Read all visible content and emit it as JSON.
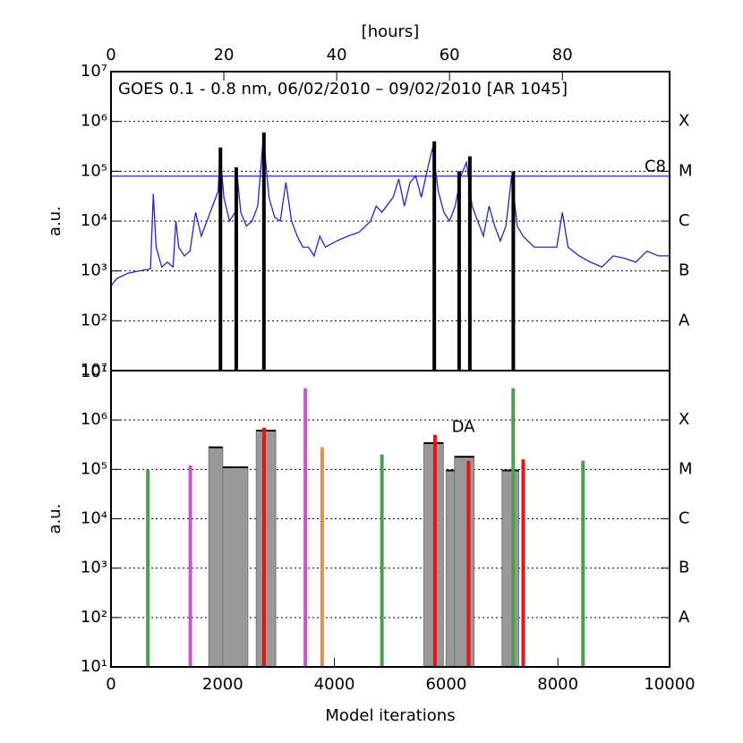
{
  "chart_data": [
    {
      "type": "line",
      "xlabel": "[hours]",
      "ylabel": "a.u.",
      "xlim": [
        0,
        99
      ],
      "xticks": [
        0,
        20,
        40,
        60,
        80
      ],
      "yscale": "log",
      "ylim": [
        10,
        10000000
      ],
      "yticks": [
        {
          "value": 10,
          "label": "10¹"
        },
        {
          "value": 100,
          "label": "10²"
        },
        {
          "value": 1000,
          "label": "10³"
        },
        {
          "value": 10000,
          "label": "10⁴"
        },
        {
          "value": 100000,
          "label": "10⁵"
        },
        {
          "value": 1000000,
          "label": "10⁶"
        },
        {
          "value": 10000000,
          "label": "10⁷"
        }
      ],
      "grid": true,
      "class_labels": [
        {
          "value": 100,
          "label": "A"
        },
        {
          "value": 1000,
          "label": "B"
        },
        {
          "value": 10000,
          "label": "C"
        },
        {
          "value": 100000,
          "label": "M"
        },
        {
          "value": 1000000,
          "label": "X"
        }
      ],
      "threshold": {
        "value": 80000,
        "label": "C8",
        "color": "#2222dd"
      },
      "series": [
        {
          "name": "GOES 0.1 - 0.8 nm, 06/02/2010 – 09/02/2010 [AR 1045]",
          "color": "#2222dd",
          "x": [
            0,
            1,
            3,
            5,
            7,
            7.5,
            8,
            9,
            10,
            11,
            11.5,
            12,
            13,
            14,
            15,
            16,
            17,
            18,
            19,
            19.3,
            20,
            21,
            22,
            22.3,
            23,
            24,
            25,
            26,
            27,
            28,
            29,
            30,
            31,
            32,
            33,
            34,
            35,
            36,
            37,
            38,
            40,
            42,
            44,
            46,
            47,
            48,
            50,
            51,
            52,
            53,
            54,
            55,
            56,
            57,
            58,
            59,
            60,
            61,
            62,
            63,
            64,
            65,
            66,
            67,
            68,
            69,
            70,
            71,
            72,
            73,
            75,
            77,
            79,
            80,
            81,
            83,
            85,
            87,
            89,
            91,
            93,
            95,
            97,
            99
          ],
          "values": [
            500,
            700,
            900,
            1000,
            1100,
            35000,
            3000,
            1200,
            1500,
            1200,
            10000,
            3000,
            2000,
            2500,
            15000,
            5000,
            10000,
            20000,
            40000,
            250000,
            30000,
            10000,
            15000,
            100000,
            15000,
            8000,
            10000,
            20000,
            500000,
            30000,
            12000,
            10000,
            60000,
            10000,
            5000,
            3000,
            3000,
            2000,
            5000,
            3000,
            4000,
            5000,
            6000,
            10000,
            20000,
            15000,
            30000,
            70000,
            20000,
            60000,
            80000,
            30000,
            100000,
            300000,
            40000,
            15000,
            10000,
            20000,
            80000,
            150000,
            20000,
            10000,
            5000,
            20000,
            8000,
            4000,
            8000,
            80000,
            8000,
            5000,
            3000,
            3000,
            3000,
            15000,
            3000,
            2000,
            1500,
            1200,
            2000,
            1800,
            1500,
            2500,
            2000,
            2000
          ]
        }
      ],
      "stems": {
        "color": "#000000",
        "x": [
          19.4,
          22.2,
          27.1,
          57.3,
          61.7,
          63.6,
          71.3
        ],
        "values": [
          300000,
          120000,
          600000,
          400000,
          100000,
          200000,
          100000
        ]
      }
    },
    {
      "type": "bar",
      "xlabel": "Model iterations",
      "ylabel": "a.u.",
      "xlim": [
        0,
        10000
      ],
      "xticks": [
        0,
        2000,
        4000,
        6000,
        8000,
        10000
      ],
      "yscale": "log",
      "ylim": [
        10,
        10000000
      ],
      "yticks": [
        {
          "value": 10,
          "label": "10¹"
        },
        {
          "value": 100,
          "label": "10²"
        },
        {
          "value": 1000,
          "label": "10³"
        },
        {
          "value": 10000,
          "label": "10⁴"
        },
        {
          "value": 100000,
          "label": "10⁵"
        },
        {
          "value": 1000000,
          "label": "10⁶"
        },
        {
          "value": 10000000,
          "label": "10⁷"
        }
      ],
      "grid": true,
      "class_labels": [
        {
          "value": 100,
          "label": "A"
        },
        {
          "value": 1000,
          "label": "B"
        },
        {
          "value": 10000,
          "label": "C"
        },
        {
          "value": 100000,
          "label": "M"
        },
        {
          "value": 1000000,
          "label": "X"
        }
      ],
      "bars": {
        "color": "#999999",
        "x_left": [
          1750,
          2000,
          2600,
          5600,
          6000,
          6150,
          7000
        ],
        "x_right": [
          2000,
          2450,
          2950,
          5950,
          6150,
          6500,
          7300
        ],
        "values": [
          280000,
          110000,
          610000,
          340000,
          95000,
          180000,
          95000
        ]
      },
      "stems": {
        "x": [
          660,
          1420,
          2740,
          3480,
          3780,
          4850,
          5800,
          6400,
          7200,
          7380,
          8450
        ],
        "values": [
          100000,
          120000,
          700000,
          4400000,
          280000,
          200000,
          500000,
          150000,
          4400000,
          160000,
          150000
        ],
        "colors": [
          "#4c9f4c",
          "#d050d0",
          "#ee1111",
          "#d050d0",
          "#e09050",
          "#4c9f4c",
          "#ee1111",
          "#ee1111",
          "#4c9f4c",
          "#ee1111",
          "#4c9f4c"
        ]
      },
      "annotations": [
        {
          "text": "DA",
          "x": 6100,
          "y": 700000,
          "color": "#ee1111"
        }
      ]
    }
  ]
}
